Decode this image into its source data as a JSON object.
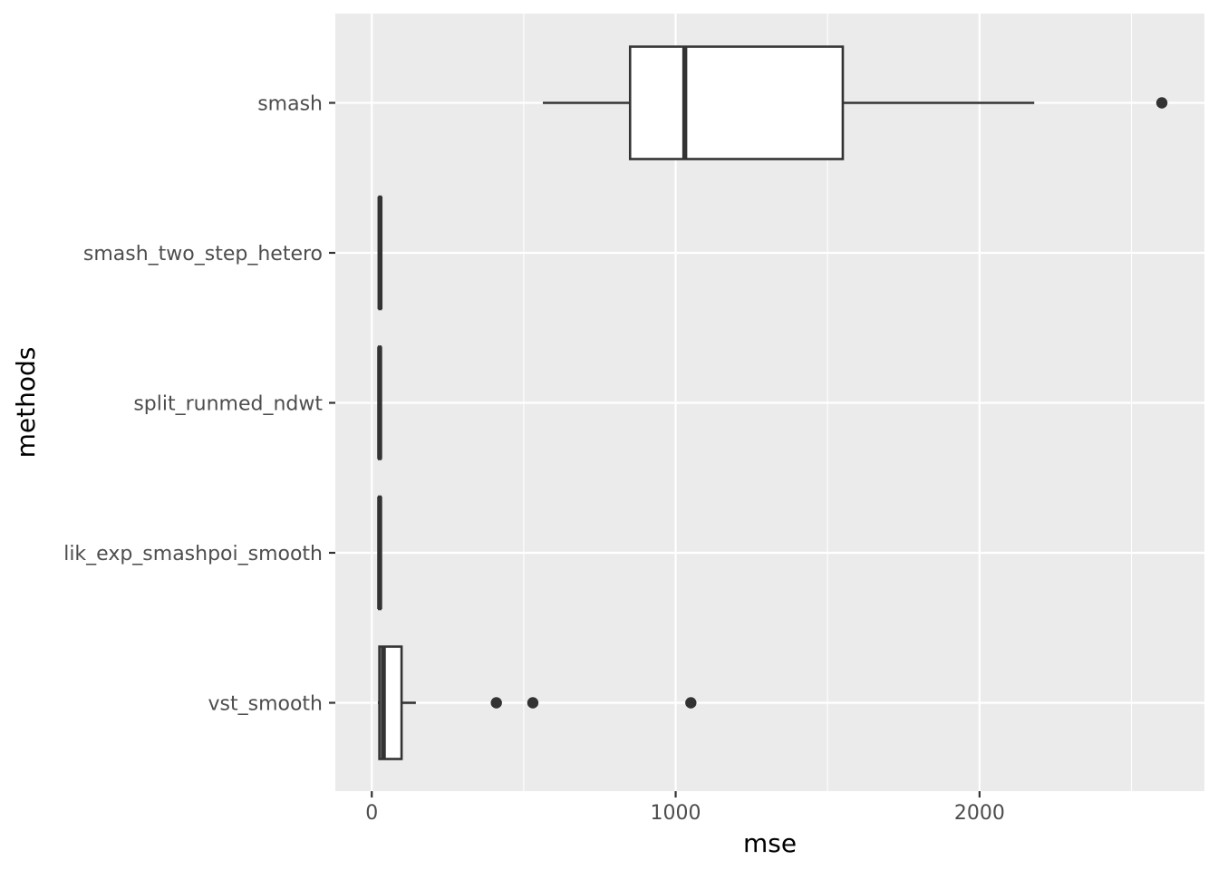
{
  "chart_data": {
    "type": "boxplot",
    "orientation": "horizontal",
    "title": "",
    "xlabel": "mse",
    "ylabel": "methods",
    "xlim": [
      -120,
      2740
    ],
    "x_ticks": [
      0,
      1000,
      2000
    ],
    "x_tick_labels": [
      "0",
      "1000",
      "2000"
    ],
    "x_minor_ticks": [
      500,
      1500,
      2500
    ],
    "categories": [
      "smash",
      "smash_two_step_hetero",
      "split_runmed_ndwt",
      "lik_exp_smashpoi_smooth",
      "vst_smooth"
    ],
    "grid": true,
    "colors": {
      "panel": "#ebebeb",
      "grid": "#ffffff",
      "box_fill": "#ffffff",
      "stroke": "#333333",
      "tick_label": "#4d4d4d",
      "axis_title": "#000000"
    },
    "series": [
      {
        "category": "smash",
        "whisker_low": 563,
        "q1": 850,
        "median": 1030,
        "q3": 1550,
        "whisker_high": 2180,
        "outliers": [
          2600
        ]
      },
      {
        "category": "smash_two_step_hetero",
        "whisker_low": 22,
        "q1": 25,
        "median": 27,
        "q3": 29,
        "whisker_high": 32,
        "outliers": []
      },
      {
        "category": "split_runmed_ndwt",
        "whisker_low": 20,
        "q1": 24,
        "median": 26,
        "q3": 28,
        "whisker_high": 33,
        "outliers": []
      },
      {
        "category": "lik_exp_smashpoi_smooth",
        "whisker_low": 20,
        "q1": 24,
        "median": 26,
        "q3": 28,
        "whisker_high": 33,
        "outliers": []
      },
      {
        "category": "vst_smooth",
        "whisker_low": 20,
        "q1": 25,
        "median": 38,
        "q3": 98,
        "whisker_high": 145,
        "outliers": [
          410,
          530,
          1050
        ]
      }
    ]
  }
}
